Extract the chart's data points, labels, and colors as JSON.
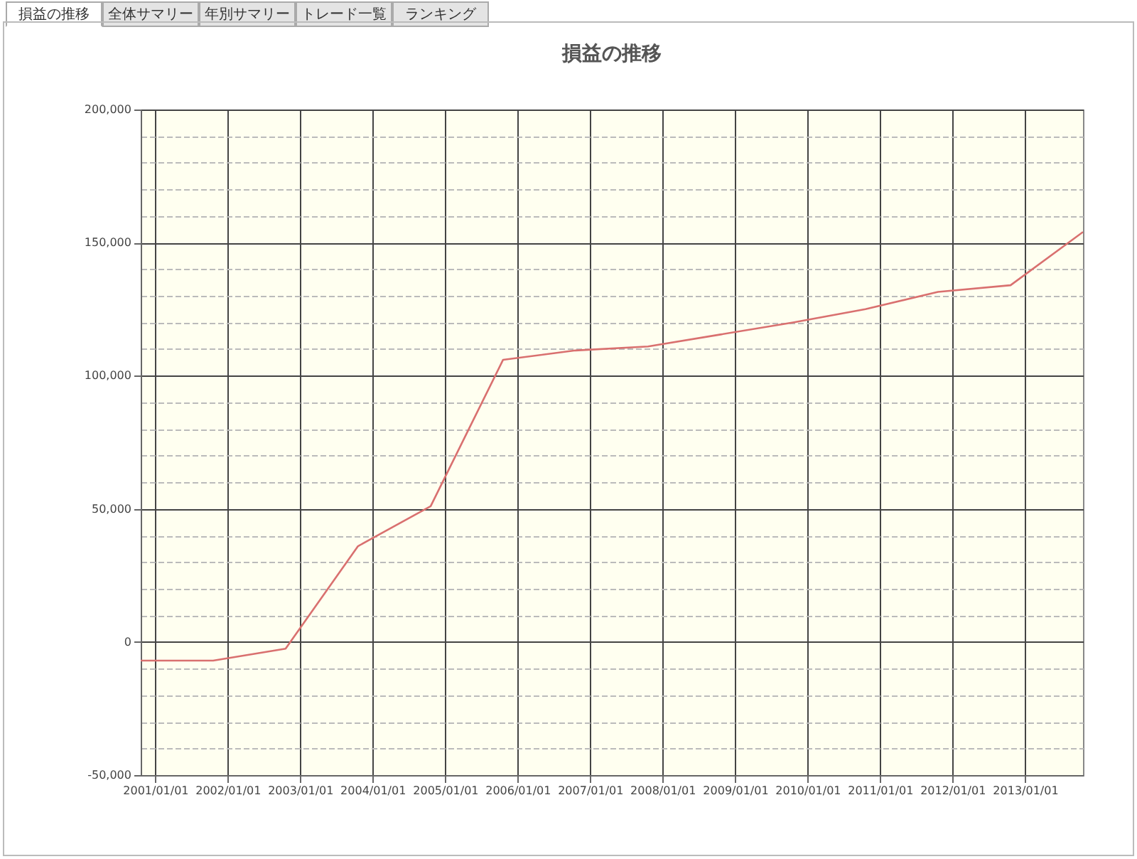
{
  "chart_data": {
    "type": "line",
    "title": "損益の推移",
    "annotations": [
      "損益の推移",
      "全体サマリー",
      "年別サマリー",
      "トレード一覧",
      "ランキング"
    ],
    "x": [
      "2000-10-20",
      "2001-10-20",
      "2002-10-20",
      "2003-10-20",
      "2004-10-20",
      "2005-10-20",
      "2006-10-20",
      "2007-10-20",
      "2008-10-20",
      "2009-10-20",
      "2010-10-20",
      "2011-10-20",
      "2012-10-20",
      "2013-10-20"
    ],
    "series": [
      {
        "color": "#d9706f",
        "values": [
          -7000,
          -7000,
          -2500,
          36000,
          51000,
          106000,
          109500,
          111000,
          115500,
          120000,
          125000,
          131500,
          134000,
          154000
        ]
      }
    ],
    "xlim": [
      "2000-10-20",
      "2013-10-20"
    ],
    "xticks": [
      {
        "value": "2001-01-01",
        "label": "2001/01/01"
      },
      {
        "value": "2002-01-01",
        "label": "2002/01/01"
      },
      {
        "value": "2003-01-01",
        "label": "2003/01/01"
      },
      {
        "value": "2004-01-01",
        "label": "2004/01/01"
      },
      {
        "value": "2005-01-01",
        "label": "2005/01/01"
      },
      {
        "value": "2006-01-01",
        "label": "2006/01/01"
      },
      {
        "value": "2007-01-01",
        "label": "2007/01/01"
      },
      {
        "value": "2008-01-01",
        "label": "2008/01/01"
      },
      {
        "value": "2009-01-01",
        "label": "2009/01/01"
      },
      {
        "value": "2010-01-01",
        "label": "2010/01/01"
      },
      {
        "value": "2011-01-01",
        "label": "2011/01/01"
      },
      {
        "value": "2012-01-01",
        "label": "2012/01/01"
      },
      {
        "value": "2013-01-01",
        "label": "2013/01/01"
      }
    ],
    "ylim": [
      -50000,
      200000
    ],
    "yticks": [
      {
        "value": -50000,
        "label": "-50,000"
      },
      {
        "value": -40000,
        "label": null
      },
      {
        "value": -30000,
        "label": null
      },
      {
        "value": -20000,
        "label": null
      },
      {
        "value": -10000,
        "label": null
      },
      {
        "value": 0,
        "label": "0"
      },
      {
        "value": 10000,
        "label": null
      },
      {
        "value": 20000,
        "label": null
      },
      {
        "value": 30000,
        "label": null
      },
      {
        "value": 40000,
        "label": null
      },
      {
        "value": 50000,
        "label": "50,000"
      },
      {
        "value": 60000,
        "label": null
      },
      {
        "value": 70000,
        "label": null
      },
      {
        "value": 80000,
        "label": null
      },
      {
        "value": 90000,
        "label": null
      },
      {
        "value": 100000,
        "label": "100,000"
      },
      {
        "value": 110000,
        "label": null
      },
      {
        "value": 120000,
        "label": null
      },
      {
        "value": 130000,
        "label": null
      },
      {
        "value": 140000,
        "label": null
      },
      {
        "value": 150000,
        "label": "150,000"
      },
      {
        "value": 160000,
        "label": null
      },
      {
        "value": 170000,
        "label": null
      },
      {
        "value": 180000,
        "label": null
      },
      {
        "value": 190000,
        "label": null
      },
      {
        "value": 200000,
        "label": "200,000"
      }
    ],
    "grid": true,
    "marker": "none",
    "line_style": "solid",
    "legend": false
  }
}
